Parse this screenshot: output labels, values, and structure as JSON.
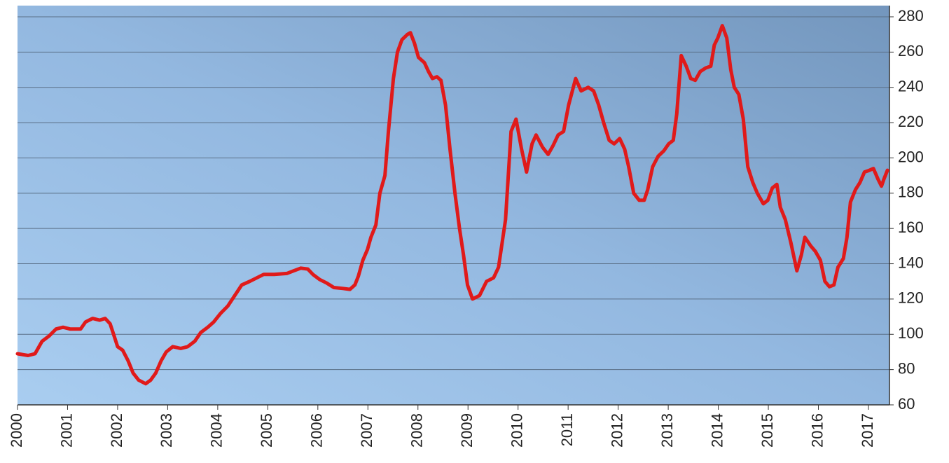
{
  "chart_data": {
    "type": "line",
    "x": [
      2000,
      2000.21,
      2000.35,
      2000.49,
      2000.63,
      2000.77,
      2000.91,
      2001.05,
      2001.26,
      2001.36,
      2001.5,
      2001.64,
      2001.75,
      2001.85,
      2001.92,
      2002.0,
      2002.1,
      2002.21,
      2002.31,
      2002.42,
      2002.56,
      2002.66,
      2002.76,
      2002.87,
      2002.97,
      2003.1,
      2003.26,
      2003.4,
      2003.54,
      2003.66,
      2003.8,
      2003.92,
      2004.06,
      2004.2,
      2004.34,
      2004.48,
      2004.64,
      2004.78,
      2004.92,
      2005.13,
      2005.38,
      2005.52,
      2005.66,
      2005.8,
      2005.9,
      2006.04,
      2006.18,
      2006.32,
      2006.5,
      2006.64,
      2006.74,
      2006.81,
      2006.9,
      2006.99,
      2007.06,
      2007.16,
      2007.24,
      2007.34,
      2007.41,
      2007.51,
      2007.59,
      2007.68,
      2007.79,
      2007.85,
      2007.93,
      2008.01,
      2008.13,
      2008.21,
      2008.29,
      2008.38,
      2008.46,
      2008.55,
      2008.64,
      2008.74,
      2008.83,
      2008.91,
      2008.99,
      2009.09,
      2009.23,
      2009.37,
      2009.51,
      2009.61,
      2009.75,
      2009.86,
      2009.96,
      2010.07,
      2010.17,
      2010.28,
      2010.36,
      2010.49,
      2010.6,
      2010.7,
      2010.8,
      2010.91,
      2011.01,
      2011.15,
      2011.26,
      2011.4,
      2011.51,
      2011.61,
      2011.71,
      2011.82,
      2011.92,
      2012.03,
      2012.13,
      2012.21,
      2012.31,
      2012.42,
      2012.52,
      2012.59,
      2012.69,
      2012.8,
      2012.91,
      2013.01,
      2013.1,
      2013.17,
      2013.26,
      2013.36,
      2013.45,
      2013.54,
      2013.64,
      2013.75,
      2013.85,
      2013.92,
      2013.99,
      2014.08,
      2014.17,
      2014.25,
      2014.32,
      2014.41,
      2014.5,
      2014.59,
      2014.69,
      2014.78,
      2014.9,
      2014.99,
      2015.08,
      2015.17,
      2015.24,
      2015.34,
      2015.45,
      2015.57,
      2015.66,
      2015.73,
      2015.85,
      2015.94,
      2016.04,
      2016.13,
      2016.22,
      2016.31,
      2016.39,
      2016.5,
      2016.57,
      2016.64,
      2016.74,
      2016.83,
      2016.92,
      2017.02,
      2017.1,
      2017.19,
      2017.26,
      2017.31,
      2017.38
    ],
    "values": [
      89,
      88,
      89,
      96,
      99,
      103,
      104,
      103,
      103,
      107,
      109,
      108,
      109,
      106,
      100,
      93,
      91,
      85,
      78,
      74,
      72,
      74,
      78,
      85,
      90,
      93,
      92,
      93,
      96,
      101,
      104,
      107,
      112,
      116,
      122,
      128,
      130,
      132,
      134,
      134,
      134.5,
      136,
      137.5,
      137,
      134,
      131,
      129,
      126.5,
      126,
      125.5,
      128,
      133,
      142,
      148,
      155,
      162,
      180,
      190,
      215,
      245,
      260,
      267,
      270,
      271,
      265,
      257,
      254,
      249,
      245,
      246,
      244,
      230,
      205,
      180,
      160,
      145,
      128,
      120,
      122,
      130,
      132,
      138,
      165,
      215,
      222,
      205,
      192,
      208,
      213,
      206,
      202,
      207,
      213,
      215,
      230,
      245,
      238,
      240,
      238,
      230,
      220,
      210,
      208,
      211,
      205,
      195,
      180,
      176,
      176,
      182,
      195,
      201,
      204,
      208,
      210,
      225,
      258,
      252,
      245,
      244,
      249,
      251,
      252,
      264,
      268,
      275,
      268,
      250,
      240,
      236,
      222,
      195,
      186,
      180,
      174,
      176,
      183,
      185,
      172,
      165,
      152,
      136,
      145,
      155,
      150,
      147,
      142,
      130,
      127,
      128,
      138,
      143,
      155,
      175,
      182,
      186,
      192,
      193,
      194,
      188,
      184,
      188,
      193
    ],
    "color": "#e01a1a",
    "xlim": [
      2000,
      2017.42
    ],
    "xticks": [
      2000,
      2001,
      2002,
      2003,
      2004,
      2005,
      2006,
      2007,
      2008,
      2009,
      2010,
      2011,
      2012,
      2013,
      2014,
      2015,
      2016,
      2017
    ],
    "ylim": [
      60,
      280
    ],
    "yticks": [
      60,
      80,
      100,
      120,
      140,
      160,
      180,
      200,
      220,
      240,
      260,
      280
    ],
    "grid": true
  }
}
